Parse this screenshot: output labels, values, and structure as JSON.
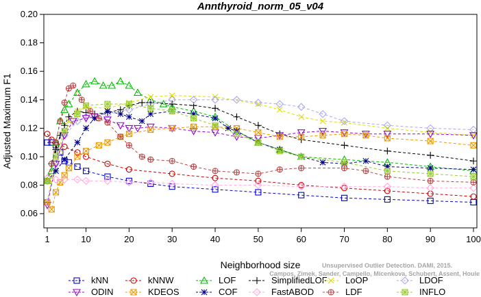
{
  "chart_data": {
    "type": "line",
    "title": "Annthyroid_norm_05_v04",
    "xlabel": "Neighborhood size",
    "ylabel": "Adjusted Maximum F1",
    "xlim": [
      1,
      100
    ],
    "ylim": [
      0.05,
      0.2
    ],
    "x_ticks": [
      1,
      10,
      20,
      30,
      40,
      50,
      60,
      70,
      80,
      90,
      100
    ],
    "y_ticks": [
      0.06,
      0.08,
      0.1,
      0.12,
      0.14,
      0.16,
      0.18,
      0.2
    ],
    "y_tick_labels": [
      "0.06",
      "0.08",
      "0.10",
      "0.12",
      "0.14",
      "0.16",
      "0.18",
      "0.20"
    ],
    "grid": false,
    "legend_position": "bottom",
    "watermark": [
      "Unsupervised Outlier Detection. DAMI, 2015.",
      "Campos, Zimek, Sander, Campello, Micenkova, Schubert, Assent, Houle"
    ],
    "series": [
      {
        "name": "kNN",
        "color": "#0000cc",
        "marker": "square",
        "points": [
          [
            1,
            0.11
          ],
          [
            2,
            0.11
          ],
          [
            3,
            0.108
          ],
          [
            4,
            0.103
          ],
          [
            5,
            0.097
          ],
          [
            6,
            0.096
          ],
          [
            8,
            0.093
          ],
          [
            10,
            0.09
          ],
          [
            15,
            0.086
          ],
          [
            20,
            0.083
          ],
          [
            25,
            0.081
          ],
          [
            30,
            0.079
          ],
          [
            40,
            0.077
          ],
          [
            50,
            0.075
          ],
          [
            60,
            0.073
          ],
          [
            70,
            0.071
          ],
          [
            80,
            0.07
          ],
          [
            90,
            0.069
          ],
          [
            100,
            0.068
          ]
        ]
      },
      {
        "name": "kNNW",
        "color": "#cc0000",
        "marker": "circle",
        "points": [
          [
            1,
            0.116
          ],
          [
            2,
            0.112
          ],
          [
            3,
            0.11
          ],
          [
            5,
            0.107
          ],
          [
            8,
            0.103
          ],
          [
            10,
            0.1
          ],
          [
            15,
            0.095
          ],
          [
            20,
            0.091
          ],
          [
            30,
            0.088
          ],
          [
            40,
            0.085
          ],
          [
            50,
            0.083
          ],
          [
            60,
            0.08
          ],
          [
            70,
            0.078
          ],
          [
            80,
            0.076
          ],
          [
            90,
            0.074
          ],
          [
            100,
            0.072
          ]
        ]
      },
      {
        "name": "LOF",
        "color": "#00bb00",
        "marker": "triangle-up",
        "points": [
          [
            1,
            0.083
          ],
          [
            2,
            0.09
          ],
          [
            3,
            0.11
          ],
          [
            4,
            0.125
          ],
          [
            5,
            0.133
          ],
          [
            6,
            0.137
          ],
          [
            8,
            0.145
          ],
          [
            10,
            0.151
          ],
          [
            12,
            0.153
          ],
          [
            14,
            0.15
          ],
          [
            16,
            0.15
          ],
          [
            18,
            0.153
          ],
          [
            20,
            0.15
          ],
          [
            22,
            0.145
          ],
          [
            25,
            0.14
          ],
          [
            28,
            0.137
          ],
          [
            30,
            0.135
          ],
          [
            35,
            0.132
          ],
          [
            40,
            0.128
          ],
          [
            45,
            0.118
          ],
          [
            50,
            0.11
          ],
          [
            55,
            0.105
          ],
          [
            60,
            0.1
          ],
          [
            70,
            0.098
          ],
          [
            80,
            0.096
          ],
          [
            90,
            0.093
          ],
          [
            100,
            0.09
          ]
        ]
      },
      {
        "name": "SimplifiedLOF",
        "color": "#000000",
        "marker": "plus",
        "points": [
          [
            1,
            0.083
          ],
          [
            2,
            0.095
          ],
          [
            3,
            0.105
          ],
          [
            4,
            0.115
          ],
          [
            5,
            0.122
          ],
          [
            6,
            0.128
          ],
          [
            8,
            0.132
          ],
          [
            10,
            0.131
          ],
          [
            12,
            0.13
          ],
          [
            15,
            0.131
          ],
          [
            18,
            0.133
          ],
          [
            20,
            0.136
          ],
          [
            23,
            0.138
          ],
          [
            25,
            0.138
          ],
          [
            30,
            0.137
          ],
          [
            35,
            0.136
          ],
          [
            40,
            0.134
          ],
          [
            45,
            0.128
          ],
          [
            50,
            0.122
          ],
          [
            55,
            0.116
          ],
          [
            60,
            0.112
          ],
          [
            70,
            0.108
          ],
          [
            80,
            0.104
          ],
          [
            90,
            0.101
          ],
          [
            100,
            0.097
          ]
        ]
      },
      {
        "name": "LoOP",
        "color": "#dddd00",
        "marker": "x",
        "points": [
          [
            1,
            0.068
          ],
          [
            2,
            0.085
          ],
          [
            4,
            0.105
          ],
          [
            6,
            0.125
          ],
          [
            8,
            0.132
          ],
          [
            10,
            0.135
          ],
          [
            15,
            0.134
          ],
          [
            20,
            0.138
          ],
          [
            25,
            0.142
          ],
          [
            30,
            0.143
          ],
          [
            40,
            0.142
          ],
          [
            50,
            0.137
          ],
          [
            55,
            0.133
          ],
          [
            60,
            0.128
          ],
          [
            65,
            0.125
          ],
          [
            70,
            0.124
          ],
          [
            80,
            0.12
          ],
          [
            90,
            0.117
          ],
          [
            100,
            0.115
          ]
        ]
      },
      {
        "name": "LDOF",
        "color": "#aaaaee",
        "marker": "diamond",
        "points": [
          [
            1,
            0.068
          ],
          [
            3,
            0.095
          ],
          [
            5,
            0.115
          ],
          [
            8,
            0.125
          ],
          [
            10,
            0.128
          ],
          [
            15,
            0.13
          ],
          [
            20,
            0.133
          ],
          [
            25,
            0.137
          ],
          [
            30,
            0.14
          ],
          [
            35,
            0.14
          ],
          [
            40,
            0.14
          ],
          [
            45,
            0.14
          ],
          [
            50,
            0.138
          ],
          [
            55,
            0.137
          ],
          [
            60,
            0.135
          ],
          [
            65,
            0.13
          ],
          [
            70,
            0.125
          ],
          [
            80,
            0.122
          ],
          [
            90,
            0.12
          ],
          [
            100,
            0.119
          ]
        ]
      },
      {
        "name": "ODIN",
        "color": "#9900cc",
        "marker": "triangle-down",
        "points": [
          [
            1,
            0.066
          ],
          [
            3,
            0.095
          ],
          [
            5,
            0.115
          ],
          [
            7,
            0.125
          ],
          [
            10,
            0.127
          ],
          [
            12,
            0.128
          ],
          [
            15,
            0.126
          ],
          [
            18,
            0.122
          ],
          [
            20,
            0.12
          ],
          [
            22,
            0.12
          ],
          [
            25,
            0.121
          ],
          [
            30,
            0.12
          ],
          [
            35,
            0.118
          ],
          [
            40,
            0.117
          ],
          [
            45,
            0.114
          ],
          [
            50,
            0.113
          ],
          [
            55,
            0.115
          ],
          [
            60,
            0.117
          ],
          [
            65,
            0.118
          ],
          [
            70,
            0.117
          ],
          [
            75,
            0.116
          ],
          [
            80,
            0.116
          ],
          [
            90,
            0.116
          ],
          [
            100,
            0.115
          ]
        ]
      },
      {
        "name": "KDEOS",
        "color": "#ee9900",
        "marker": "square-x",
        "points": [
          [
            1,
            0.068
          ],
          [
            2,
            0.063
          ],
          [
            3,
            0.075
          ],
          [
            4,
            0.082
          ],
          [
            5,
            0.087
          ],
          [
            6,
            0.092
          ],
          [
            8,
            0.1
          ],
          [
            10,
            0.104
          ],
          [
            13,
            0.108
          ],
          [
            15,
            0.11
          ],
          [
            18,
            0.114
          ],
          [
            20,
            0.116
          ],
          [
            25,
            0.119
          ],
          [
            30,
            0.12
          ],
          [
            35,
            0.121
          ],
          [
            40,
            0.121
          ],
          [
            45,
            0.12
          ],
          [
            50,
            0.117
          ],
          [
            55,
            0.114
          ],
          [
            60,
            0.114
          ],
          [
            65,
            0.115
          ],
          [
            70,
            0.116
          ],
          [
            75,
            0.115
          ],
          [
            80,
            0.113
          ],
          [
            90,
            0.111
          ],
          [
            100,
            0.108
          ]
        ]
      },
      {
        "name": "COF",
        "color": "#000088",
        "marker": "star",
        "points": [
          [
            1,
            0.083
          ],
          [
            3,
            0.09
          ],
          [
            5,
            0.098
          ],
          [
            8,
            0.11
          ],
          [
            10,
            0.12
          ],
          [
            12,
            0.127
          ],
          [
            15,
            0.132
          ],
          [
            18,
            0.13
          ],
          [
            20,
            0.128
          ],
          [
            23,
            0.125
          ],
          [
            25,
            0.13
          ],
          [
            30,
            0.132
          ],
          [
            35,
            0.13
          ],
          [
            40,
            0.127
          ],
          [
            43,
            0.12
          ],
          [
            45,
            0.118
          ],
          [
            50,
            0.11
          ],
          [
            55,
            0.105
          ],
          [
            60,
            0.1
          ],
          [
            65,
            0.096
          ],
          [
            70,
            0.095
          ],
          [
            75,
            0.097
          ],
          [
            80,
            0.093
          ],
          [
            90,
            0.092
          ],
          [
            100,
            0.091
          ]
        ]
      },
      {
        "name": "FastABOD",
        "color": "#ffaadd",
        "marker": "diamond",
        "points": [
          [
            1,
            0.085
          ],
          [
            3,
            0.084
          ],
          [
            5,
            0.084
          ],
          [
            8,
            0.084
          ],
          [
            10,
            0.083
          ],
          [
            15,
            0.083
          ],
          [
            20,
            0.082
          ],
          [
            25,
            0.082
          ],
          [
            30,
            0.081
          ],
          [
            40,
            0.08
          ],
          [
            50,
            0.08
          ],
          [
            60,
            0.079
          ],
          [
            70,
            0.079
          ],
          [
            80,
            0.079
          ],
          [
            90,
            0.078
          ],
          [
            100,
            0.078
          ]
        ]
      },
      {
        "name": "LDF",
        "color": "#bb4444",
        "marker": "circle-plus",
        "points": [
          [
            1,
            0.083
          ],
          [
            2,
            0.095
          ],
          [
            3,
            0.11
          ],
          [
            4,
            0.125
          ],
          [
            5,
            0.138
          ],
          [
            6,
            0.148
          ],
          [
            7,
            0.15
          ],
          [
            9,
            0.14
          ],
          [
            11,
            0.132
          ],
          [
            13,
            0.127
          ],
          [
            15,
            0.124
          ],
          [
            18,
            0.114
          ],
          [
            20,
            0.108
          ],
          [
            23,
            0.1
          ],
          [
            25,
            0.098
          ],
          [
            30,
            0.097
          ],
          [
            35,
            0.093
          ],
          [
            40,
            0.09
          ],
          [
            45,
            0.089
          ],
          [
            50,
            0.088
          ],
          [
            55,
            0.091
          ],
          [
            60,
            0.092
          ],
          [
            70,
            0.092
          ],
          [
            75,
            0.09
          ],
          [
            80,
            0.086
          ],
          [
            90,
            0.083
          ],
          [
            100,
            0.082
          ]
        ]
      },
      {
        "name": "INFLO",
        "color": "#99cc33",
        "marker": "square-star",
        "points": [
          [
            1,
            0.083
          ],
          [
            3,
            0.1
          ],
          [
            5,
            0.118
          ],
          [
            8,
            0.13
          ],
          [
            10,
            0.136
          ],
          [
            15,
            0.137
          ],
          [
            20,
            0.137
          ],
          [
            25,
            0.134
          ],
          [
            30,
            0.132
          ],
          [
            35,
            0.127
          ],
          [
            40,
            0.122
          ],
          [
            45,
            0.116
          ],
          [
            50,
            0.11
          ],
          [
            55,
            0.104
          ],
          [
            60,
            0.1
          ],
          [
            70,
            0.096
          ],
          [
            80,
            0.09
          ],
          [
            90,
            0.088
          ],
          [
            100,
            0.086
          ]
        ]
      }
    ]
  }
}
